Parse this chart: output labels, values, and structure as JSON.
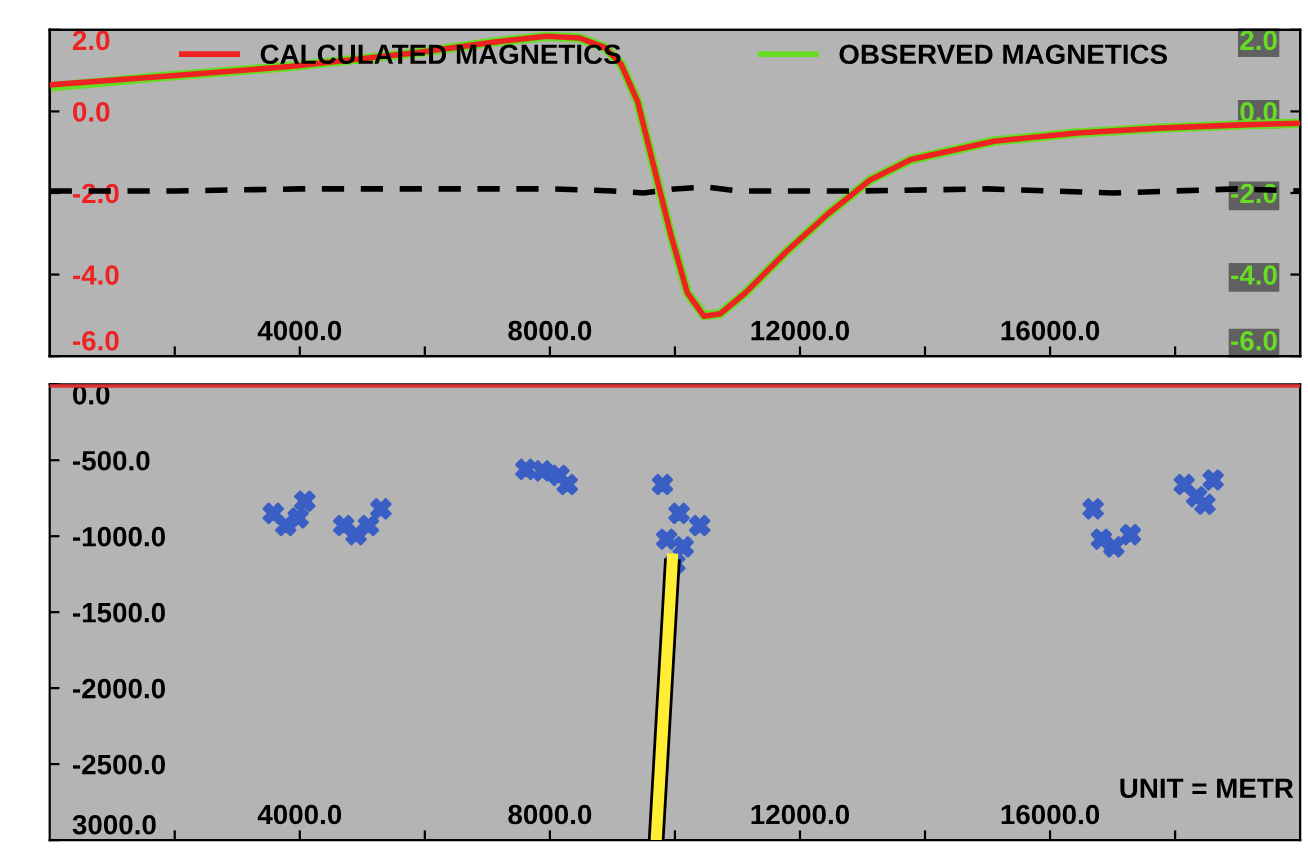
{
  "chart_data": [
    {
      "type": "line",
      "xlim": [
        0,
        20000
      ],
      "xticks": [
        {
          "value": 2000,
          "label": null
        },
        {
          "value": 4000,
          "label": "4000.0"
        },
        {
          "value": 6000,
          "label": null
        },
        {
          "value": 8000,
          "label": "8000.0"
        },
        {
          "value": 10000,
          "label": null
        },
        {
          "value": 12000,
          "label": "12000.0"
        },
        {
          "value": 14000,
          "label": null
        },
        {
          "value": 16000,
          "label": "16000.0"
        },
        {
          "value": 18000,
          "label": null
        }
      ],
      "ylim": [
        -6,
        2
      ],
      "yticks": [
        {
          "value": 2,
          "label": "2.0"
        },
        {
          "value": 0,
          "label": "0.0"
        },
        {
          "value": -2,
          "label": "-2.0"
        },
        {
          "value": -4,
          "label": "-4.0"
        },
        {
          "value": -6,
          "label": "-6.0"
        }
      ],
      "y2lim": [
        -6,
        2
      ],
      "y2ticks": [
        {
          "value": 2,
          "label": "2.0"
        },
        {
          "value": 0,
          "label": "0.0"
        },
        {
          "value": -2,
          "label": "-2.0"
        },
        {
          "value": -4,
          "label": "-4.0"
        },
        {
          "value": -6,
          "label": "-6.0"
        }
      ],
      "legend": "top",
      "series": [
        {
          "name": "OBSERVED MAGNETICS",
          "color": "#66dd22",
          "axis": "y2",
          "x": [
            0,
            1854,
            3840,
            5828,
            7152,
            7947,
            8477,
            8874,
            9139,
            9404,
            9669,
            9934,
            10199,
            10464,
            10728,
            11126,
            11788,
            12450,
            13113,
            13775,
            15099,
            16424,
            17748,
            19073,
            20000
          ],
          "values": [
            0.6,
            0.86,
            1.1,
            1.43,
            1.71,
            1.84,
            1.8,
            1.57,
            1.16,
            0.24,
            -1.39,
            -3.02,
            -4.45,
            -5.0,
            -4.96,
            -4.45,
            -3.43,
            -2.51,
            -1.69,
            -1.18,
            -0.73,
            -0.53,
            -0.41,
            -0.33,
            -0.29
          ]
        },
        {
          "name": "CALCULATED MAGNETICS",
          "color": "#ee2222",
          "axis": "y",
          "x": [
            0,
            1854,
            3840,
            5828,
            7152,
            7947,
            8477,
            8874,
            9139,
            9404,
            9669,
            9934,
            10199,
            10464,
            10728,
            11126,
            11788,
            12450,
            13113,
            13775,
            15099,
            16424,
            17748,
            19073,
            20000
          ],
          "values": [
            0.65,
            0.86,
            1.1,
            1.43,
            1.71,
            1.84,
            1.8,
            1.57,
            1.16,
            0.24,
            -1.39,
            -3.02,
            -4.45,
            -5.02,
            -4.96,
            -4.45,
            -3.43,
            -2.51,
            -1.69,
            -1.18,
            -0.73,
            -0.53,
            -0.41,
            -0.33,
            -0.29
          ]
        },
        {
          "color": "#000000",
          "axis": "y",
          "line_style": "dashed",
          "x": [
            0,
            2000,
            4000,
            6000,
            8000,
            9000,
            9500,
            10000,
            10500,
            11000,
            13000,
            15000,
            17000,
            19000,
            20000
          ],
          "values": [
            -1.95,
            -1.95,
            -1.9,
            -1.9,
            -1.9,
            -1.95,
            -2.0,
            -1.9,
            -1.85,
            -1.95,
            -1.95,
            -1.9,
            -2.0,
            -1.9,
            -1.95
          ]
        }
      ]
    },
    {
      "type": "scatter",
      "xlim": [
        0,
        20000
      ],
      "xticks": [
        {
          "value": 2000,
          "label": null
        },
        {
          "value": 4000,
          "label": "4000.0"
        },
        {
          "value": 6000,
          "label": null
        },
        {
          "value": 8000,
          "label": "8000.0"
        },
        {
          "value": 10000,
          "label": null
        },
        {
          "value": 12000,
          "label": "12000.0"
        },
        {
          "value": 14000,
          "label": null
        },
        {
          "value": 16000,
          "label": "16000.0"
        },
        {
          "value": 18000,
          "label": null
        }
      ],
      "ylim": [
        -3000,
        0
      ],
      "yticks": [
        {
          "value": 0,
          "label": "0.0"
        },
        {
          "value": -500,
          "label": "-500.0"
        },
        {
          "value": -1000,
          "label": "-1000.0"
        },
        {
          "value": -1500,
          "label": "-1500.0"
        },
        {
          "value": -2000,
          "label": "-2000.0"
        },
        {
          "value": -2500,
          "label": "-2500.0"
        },
        {
          "value": -3000,
          "label": "3000.0"
        }
      ],
      "ref_lines": [
        {
          "axis": "y",
          "value": 0,
          "label": null,
          "color": "#dd3333"
        }
      ],
      "annotations": [
        "UNIT = METR"
      ],
      "series": [
        {
          "type": "scatter",
          "color": "#3a5fc4",
          "marker": "cross",
          "x": [
            3576,
            3775,
            3974,
            4080,
            4702,
            4901,
            5099,
            5298,
            7616,
            7881,
            8146,
            8278,
            9801,
            9868,
            10000,
            10132,
            10397,
            10066,
            16689,
            16821,
            17020,
            17285,
            18146,
            18344,
            18477,
            18609
          ],
          "values": [
            -850,
            -930,
            -880,
            -770,
            -930,
            -990,
            -930,
            -820,
            -560,
            -570,
            -600,
            -660,
            -660,
            -1020,
            -1180,
            -1070,
            -930,
            -850,
            -820,
            -1020,
            -1070,
            -990,
            -660,
            -740,
            -790,
            -630
          ]
        },
        {
          "type": "line",
          "color": "#ffee33",
          "x": [
            9960,
            9700
          ],
          "values": [
            -1150,
            -3000
          ]
        }
      ]
    }
  ]
}
